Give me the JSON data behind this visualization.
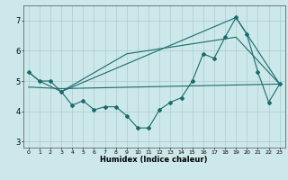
{
  "xlabel": "Humidex (Indice chaleur)",
  "background_color": "#cde8ea",
  "grid_color": "#aacccc",
  "line_color": "#1a6b6b",
  "xlim": [
    -0.5,
    23.5
  ],
  "ylim": [
    2.8,
    7.5
  ],
  "yticks": [
    3,
    4,
    5,
    6,
    7
  ],
  "xticks": [
    0,
    1,
    2,
    3,
    4,
    5,
    6,
    7,
    8,
    9,
    10,
    11,
    12,
    13,
    14,
    15,
    16,
    17,
    18,
    19,
    20,
    21,
    22,
    23
  ],
  "series1_x": [
    0,
    1,
    2,
    3,
    4,
    5,
    6,
    7,
    8,
    9,
    10,
    11,
    12,
    13,
    14,
    15,
    16,
    17,
    18,
    19,
    20,
    21,
    22,
    23
  ],
  "series1_y": [
    5.3,
    5.0,
    5.0,
    4.65,
    4.2,
    4.35,
    4.05,
    4.15,
    4.15,
    3.85,
    3.45,
    3.45,
    4.05,
    4.3,
    4.45,
    5.0,
    5.9,
    5.75,
    6.45,
    7.1,
    6.55,
    5.3,
    4.3,
    4.9
  ],
  "series2_x": [
    0,
    1,
    3,
    19,
    23
  ],
  "series2_y": [
    5.3,
    5.0,
    4.65,
    7.1,
    4.9
  ],
  "series3_x": [
    0,
    3,
    23
  ],
  "series3_y": [
    4.8,
    4.75,
    4.9
  ],
  "series4_x": [
    3,
    9,
    19,
    23
  ],
  "series4_y": [
    4.65,
    5.9,
    6.45,
    4.9
  ]
}
